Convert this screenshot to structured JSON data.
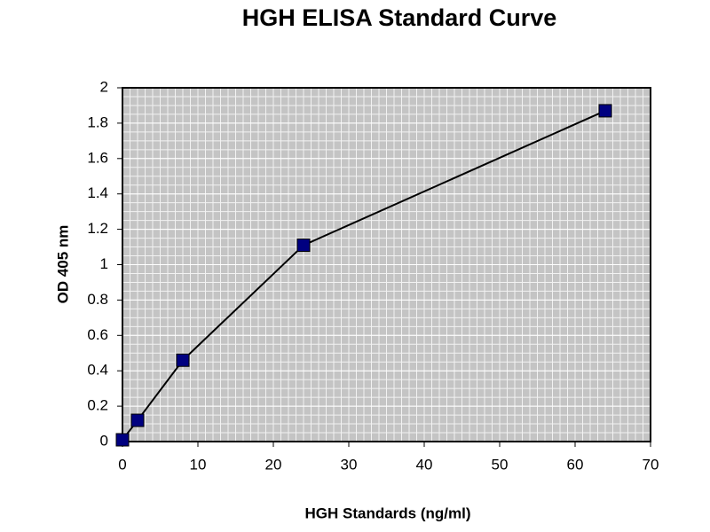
{
  "chart_data": {
    "type": "line",
    "title": "HGH ELISA Standard Curve",
    "x_label": "HGH Standards (ng/ml)",
    "y_label": "OD 405 nm",
    "x": [
      0,
      2,
      8,
      24,
      64
    ],
    "values": [
      0.01,
      0.12,
      0.46,
      1.11,
      1.87
    ],
    "color": "#000080",
    "line_color": "#000000",
    "xlim": [
      0,
      70
    ],
    "xticks": [
      0,
      10,
      20,
      30,
      40,
      50,
      60,
      70
    ],
    "ylim": [
      0,
      2
    ],
    "yticks": [
      0,
      0.2,
      0.4,
      0.6,
      0.8,
      1,
      1.2,
      1.4,
      1.6,
      1.8,
      2
    ],
    "grid": true
  }
}
